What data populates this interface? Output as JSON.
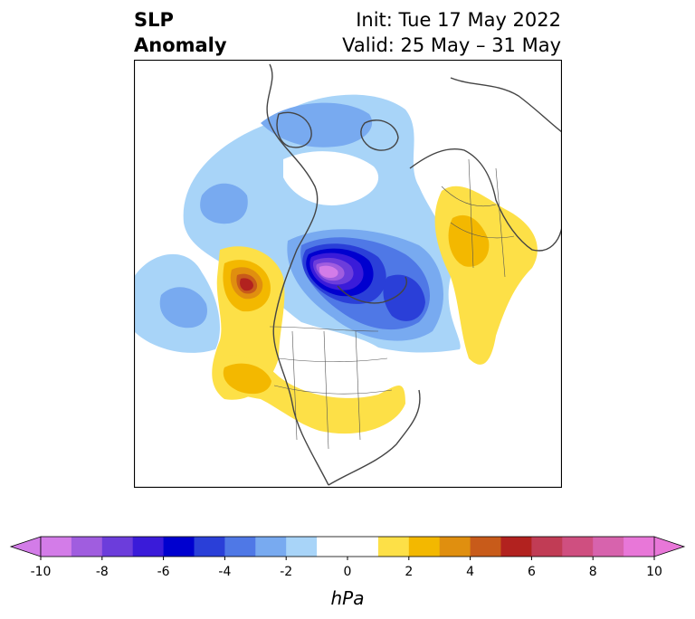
{
  "title": {
    "left_line1": "SLP",
    "left_line2": "Anomaly",
    "right_line1": "Init: Tue 17 May 2022",
    "right_line2": "Valid: 25 May – 31 May"
  },
  "colorbar": {
    "unit": "hPa",
    "min": -10,
    "max": 10,
    "step": 1,
    "extend": "both",
    "ticks": [
      "-10",
      "-8",
      "-6",
      "-4",
      "-2",
      "0",
      "2",
      "4",
      "6",
      "8",
      "10"
    ],
    "colors": [
      "#d37ce8",
      "#a05ddf",
      "#6c3ddb",
      "#3a1bd9",
      "#0000cf",
      "#2a3fd8",
      "#4f78e6",
      "#78aaf0",
      "#a8d4f8",
      "#ffffff",
      "#ffffff",
      "#fde047",
      "#f3b800",
      "#e08f0f",
      "#c85b1a",
      "#b2221f",
      "#c13c55",
      "#cf4f80",
      "#d763ad",
      "#e877d8"
    ],
    "under_color": "#d37ce8",
    "over_color": "#e877d8"
  }
}
